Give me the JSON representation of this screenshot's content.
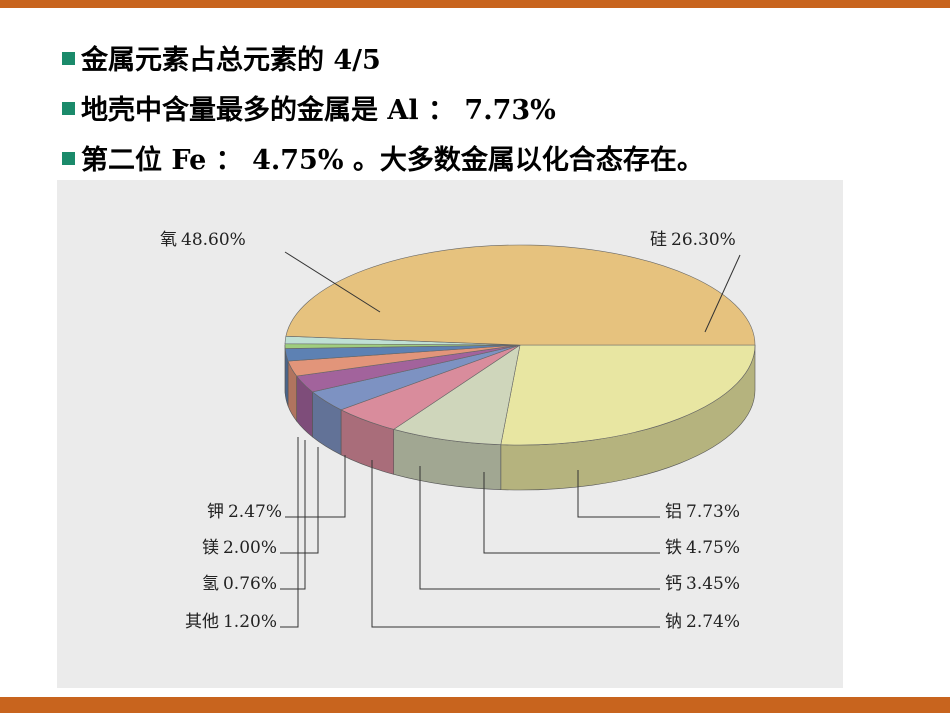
{
  "bullets": [
    "金属元素占总元素的 4/5",
    "地壳中含量最多的金属是 Al ： 7.73%",
    "第二位 Fe ： 4.75% 。大多数金属以化合态存在。"
  ],
  "chart_data": {
    "type": "pie",
    "categories": [
      "硅",
      "铝",
      "铁",
      "钙",
      "钠",
      "钾",
      "镁",
      "氢",
      "其他",
      "氧"
    ],
    "values": [
      26.3,
      7.73,
      4.75,
      3.45,
      2.74,
      2.47,
      2.0,
      0.76,
      1.2,
      48.6
    ],
    "value_labels": [
      "26.30%",
      "7.73%",
      "4.75%",
      "3.45%",
      "2.74%",
      "2.47%",
      "2.00%",
      "0.76%",
      "1.20%",
      "48.60%"
    ],
    "colors": [
      "#e8e6a2",
      "#cfd6bb",
      "#d98c9c",
      "#7d92c2",
      "#a2639c",
      "#e2957a",
      "#5d81b3",
      "#9fcd7e",
      "#bfe0d4",
      "#e6c27e"
    ]
  }
}
